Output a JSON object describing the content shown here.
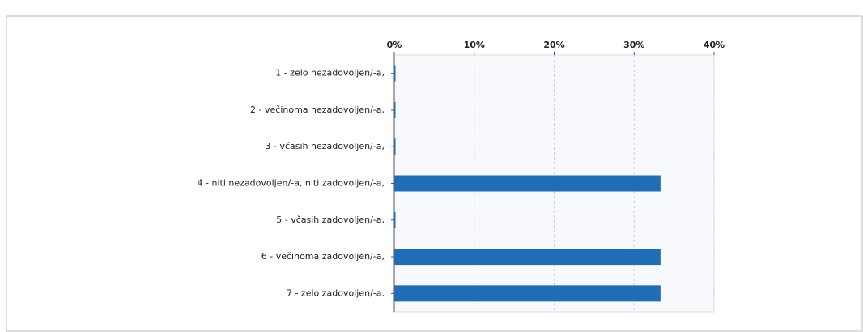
{
  "chart_data": {
    "type": "bar",
    "orientation": "horizontal",
    "categories": [
      "1 - zelo nezadovoljen/-a,",
      "2 - večinoma nezadovoljen/-a,",
      "3 - včasih nezadovoljen/-a,",
      "4 - niti nezadovoljen/-a, niti zadovoljen/-a,",
      "5 - včasih zadovoljen/-a,",
      "6 - večinoma zadovoljen/-a,",
      "7 - zelo zadovoljen/-a."
    ],
    "values": [
      0,
      0,
      0,
      33.3,
      0,
      33.3,
      33.3
    ],
    "color": "#1f6db5",
    "xlim": [
      0,
      40
    ],
    "xticks": [
      {
        "value": 0,
        "label": "0%"
      },
      {
        "value": 10,
        "label": "10%"
      },
      {
        "value": 20,
        "label": "20%"
      },
      {
        "value": 30,
        "label": "30%"
      },
      {
        "value": 40,
        "label": "40%"
      }
    ],
    "grid": true
  }
}
